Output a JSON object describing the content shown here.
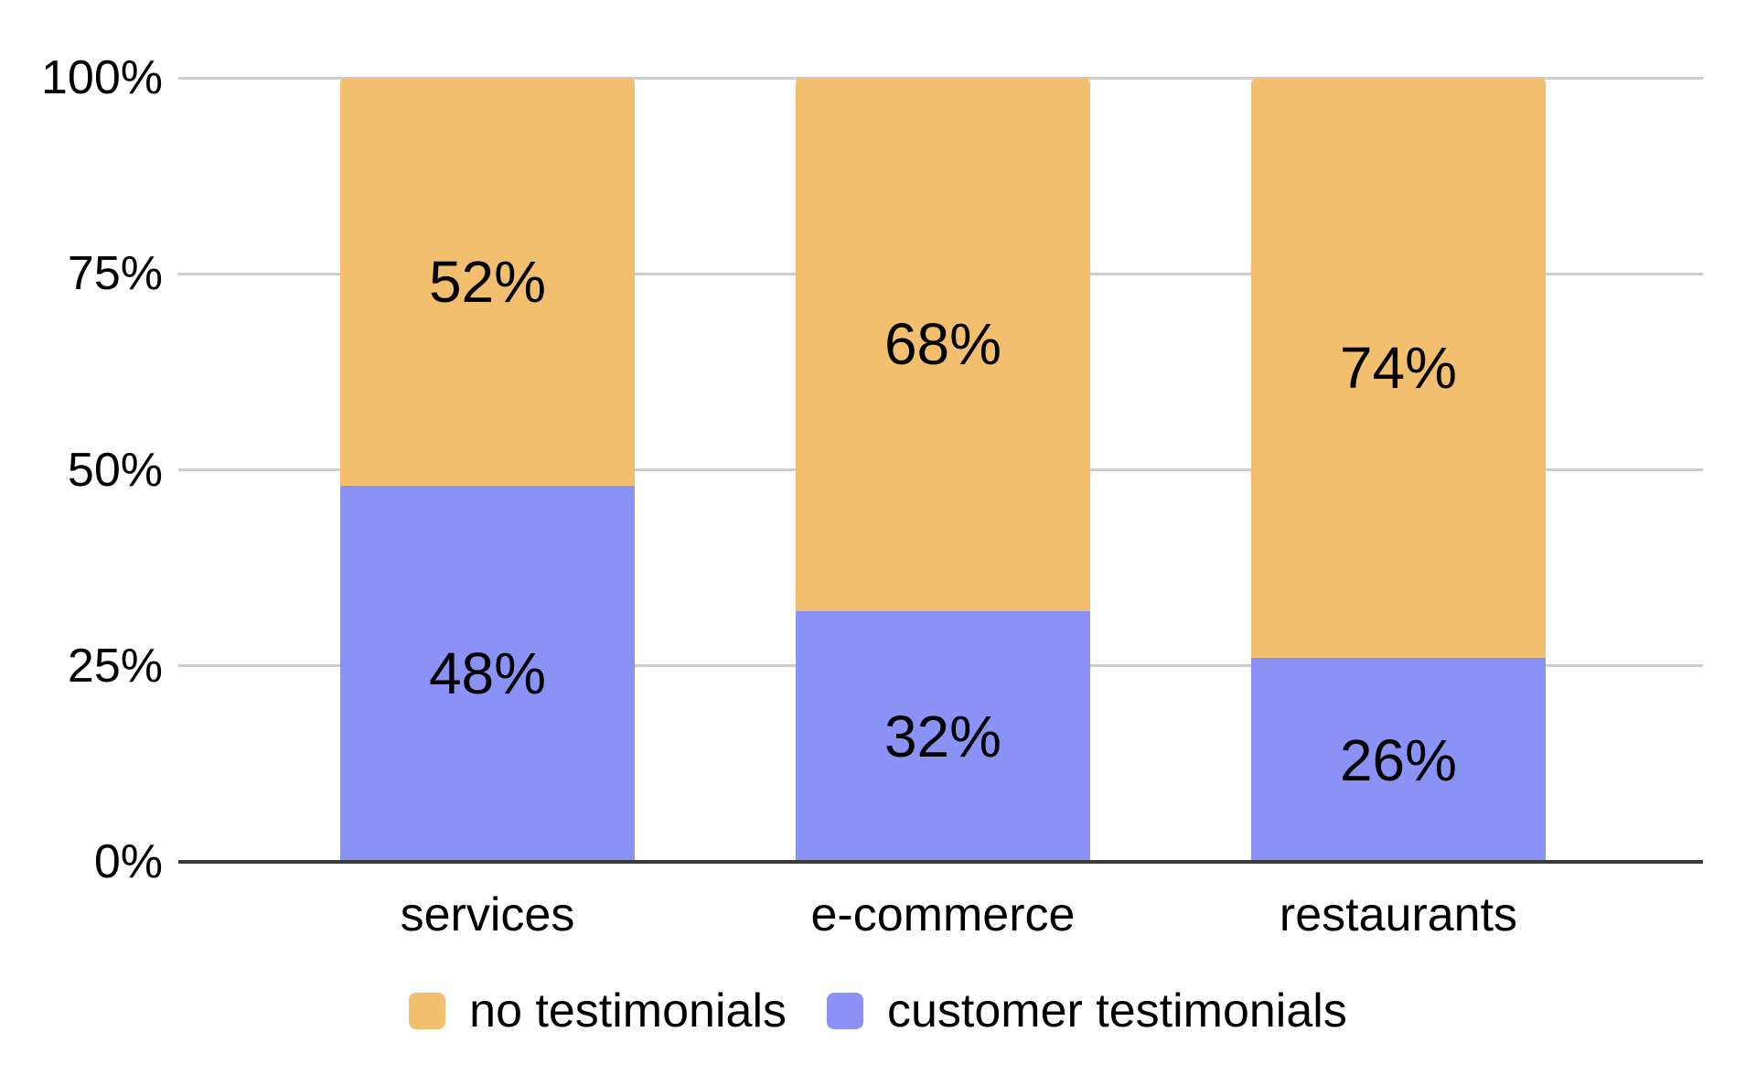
{
  "chart_data": {
    "type": "bar",
    "stacked": true,
    "percent_stacked": true,
    "categories": [
      "services",
      "e-commerce",
      "restaurants"
    ],
    "series": [
      {
        "name": "customer testimonials",
        "color": "#8A92F5",
        "values": [
          48,
          32,
          26
        ],
        "labels": [
          "48%",
          "32%",
          "26%"
        ]
      },
      {
        "name": "no testimonials",
        "color": "#F2BF6E",
        "values": [
          52,
          68,
          74
        ],
        "labels": [
          "52%",
          "68%",
          "74%"
        ]
      }
    ],
    "ylim": [
      0,
      100
    ],
    "yticks": [
      {
        "value": 100,
        "label": "100%"
      },
      {
        "value": 75,
        "label": "75%"
      },
      {
        "value": 50,
        "label": "50%"
      },
      {
        "value": 25,
        "label": "25%"
      },
      {
        "value": 0,
        "label": "0%"
      }
    ],
    "grid": true,
    "legend_position": "bottom",
    "legend": [
      {
        "label": "no testimonials",
        "color": "#F2BF6E"
      },
      {
        "label": "customer testimonials",
        "color": "#8A92F5"
      }
    ]
  },
  "style": {
    "grid_color": "#CCCCCC",
    "axis_color": "#3A3A3A",
    "text_color": "#000000",
    "background": "#FFFFFF"
  }
}
